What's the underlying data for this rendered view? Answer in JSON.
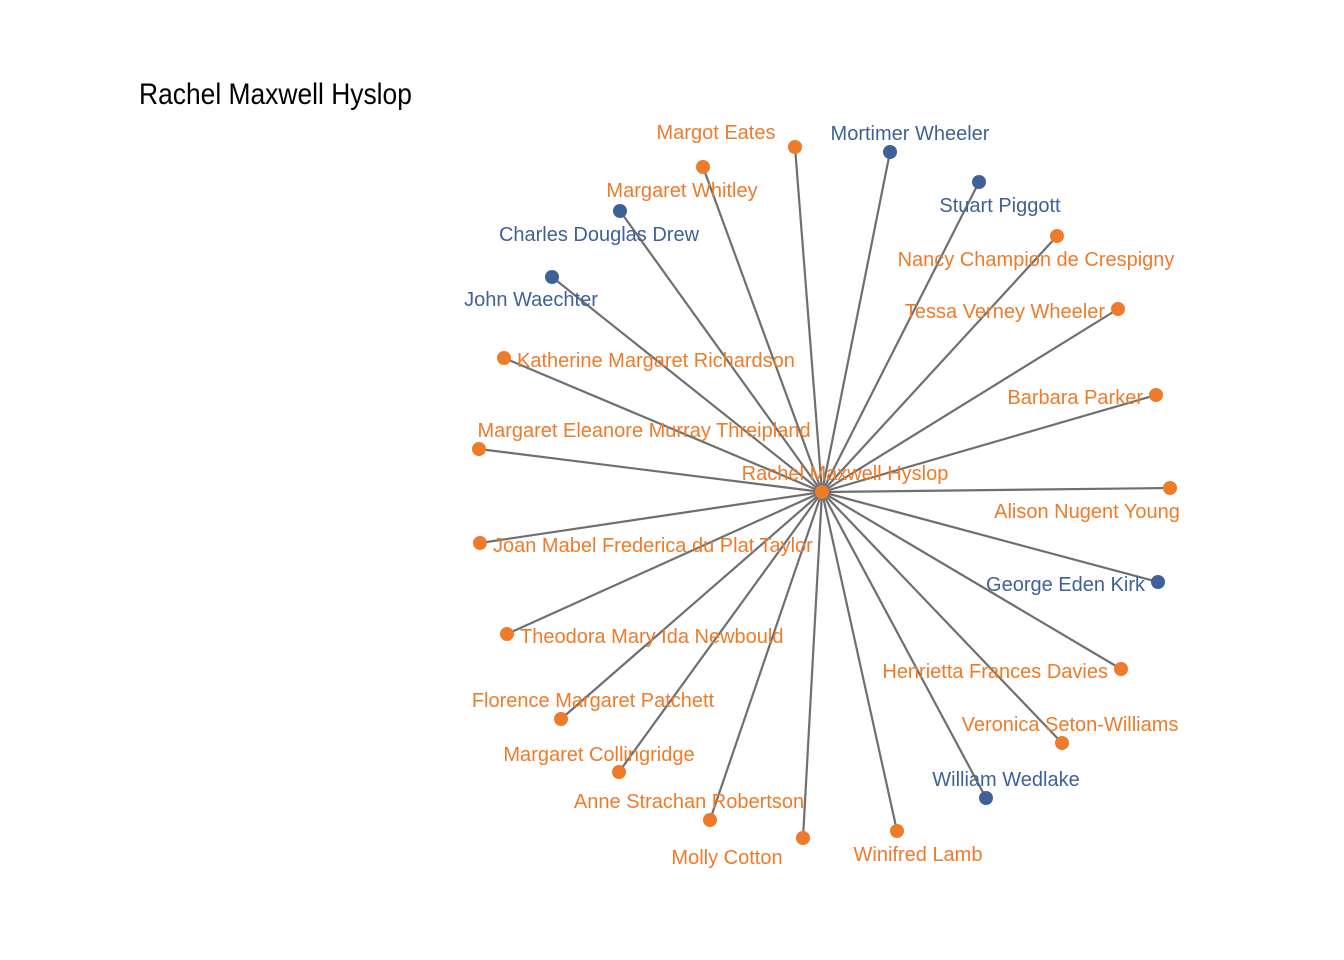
{
  "title": "Rachel Maxwell Hyslop",
  "colors": {
    "female": "#ee7b2a",
    "male": "#3f6198",
    "edge": "#6f6f6f"
  },
  "center": {
    "name": "Rachel Maxwell Hyslop",
    "group": "female"
  },
  "nodes": [
    {
      "name": "Margot Eates",
      "group": "female"
    },
    {
      "name": "Mortimer Wheeler",
      "group": "male"
    },
    {
      "name": "Margaret Whitley",
      "group": "female"
    },
    {
      "name": "Stuart Piggott",
      "group": "male"
    },
    {
      "name": "Charles Douglas Drew",
      "group": "male"
    },
    {
      "name": "Nancy Champion de Crespigny",
      "group": "female"
    },
    {
      "name": "John Waechter",
      "group": "male"
    },
    {
      "name": "Tessa Verney Wheeler",
      "group": "female"
    },
    {
      "name": "Katherine Margaret Richardson",
      "group": "female"
    },
    {
      "name": "Barbara Parker",
      "group": "female"
    },
    {
      "name": "Margaret Eleanore Murray Threipland",
      "group": "female"
    },
    {
      "name": "Alison Nugent Young",
      "group": "female"
    },
    {
      "name": "Joan Mabel Frederica du Plat Taylor",
      "group": "female"
    },
    {
      "name": "George Eden Kirk",
      "group": "male"
    },
    {
      "name": "Theodora Mary Ida Newbould",
      "group": "female"
    },
    {
      "name": "Henrietta Frances Davies",
      "group": "female"
    },
    {
      "name": "Florence Margaret Patchett",
      "group": "female"
    },
    {
      "name": "Veronica Seton-Williams",
      "group": "female"
    },
    {
      "name": "Margaret Collingridge",
      "group": "female"
    },
    {
      "name": "William Wedlake",
      "group": "male"
    },
    {
      "name": "Anne Strachan Robertson",
      "group": "female"
    },
    {
      "name": "Winifred Lamb",
      "group": "female"
    },
    {
      "name": "Molly Cotton",
      "group": "female"
    }
  ]
}
